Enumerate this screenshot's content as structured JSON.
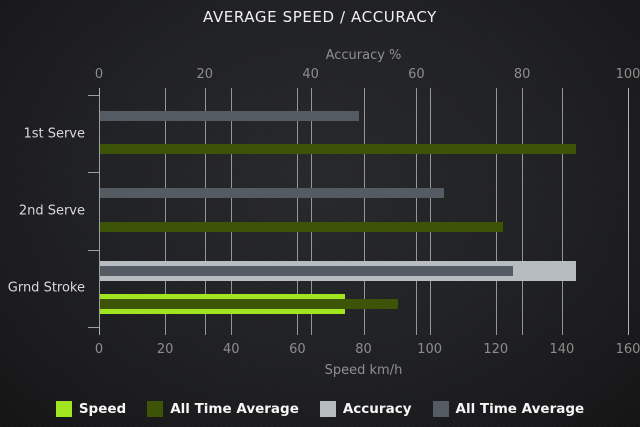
{
  "chart_data": {
    "type": "bar",
    "orientation": "horizontal",
    "title": "AVERAGE SPEED / ACCURACY",
    "categories": [
      "1st Serve",
      "2nd Serve",
      "Grnd Stroke"
    ],
    "axes": {
      "top": {
        "label": "Accuracy %",
        "range": [
          0,
          100
        ],
        "ticks": [
          0,
          20,
          40,
          60,
          80,
          100
        ]
      },
      "bottom": {
        "label": "Speed km/h",
        "range": [
          0,
          160
        ],
        "ticks": [
          0,
          20,
          40,
          60,
          80,
          100,
          120,
          140,
          160
        ]
      }
    },
    "series": [
      {
        "name": "Speed",
        "axis": "speed",
        "style": "thick",
        "color": "#a0e520",
        "values": [
          null,
          null,
          74
        ]
      },
      {
        "name": "All Time Average",
        "axis": "speed",
        "style": "thin",
        "color": "#3d5406",
        "values": [
          144,
          122,
          90
        ]
      },
      {
        "name": "Accuracy",
        "axis": "accuracy",
        "style": "thick",
        "color": "#b6bcc0",
        "values": [
          null,
          null,
          90
        ]
      },
      {
        "name": "All Time Average",
        "axis": "accuracy",
        "style": "thin",
        "color": "#555b62",
        "values": [
          49,
          65,
          78
        ]
      }
    ],
    "legend": [
      {
        "label": "Speed",
        "color": "#a0e520"
      },
      {
        "label": "All Time Average",
        "color": "#3d5406"
      },
      {
        "label": "Accuracy",
        "color": "#b6bcc0"
      },
      {
        "label": "All Time Average",
        "color": "#555b62"
      }
    ],
    "grid": true,
    "legend_position": "bottom",
    "colors": {
      "background": "#202124",
      "gridline": "#b9bcbe",
      "axis_text": "#8d8d8d",
      "category_text": "#d9d9d9",
      "title_text": "#f0f0f0"
    }
  }
}
